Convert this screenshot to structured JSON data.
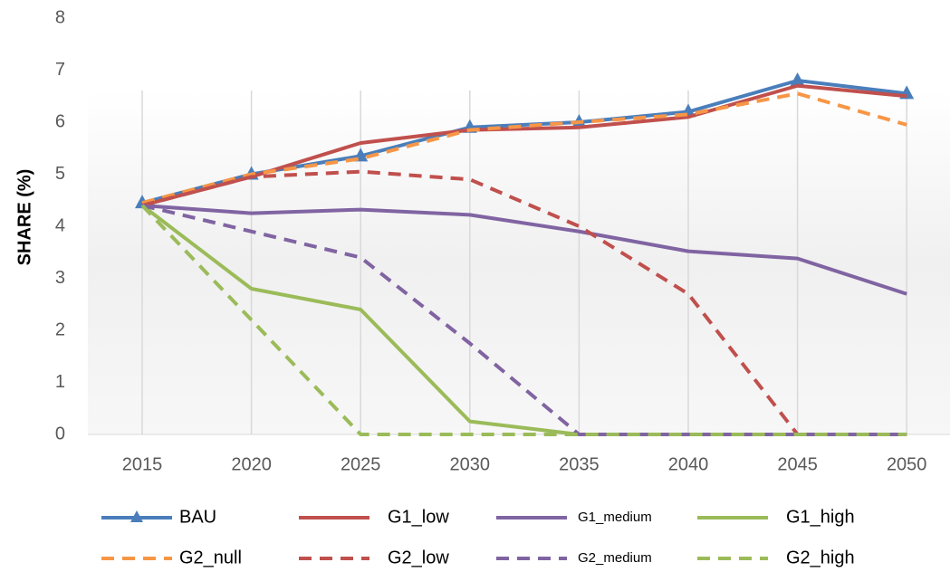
{
  "chart_data": {
    "type": "line",
    "y_label": "SHARE (%)",
    "categories": [
      "2015",
      "2020",
      "2025",
      "2030",
      "2035",
      "2040",
      "2045",
      "2050"
    ],
    "ylim": [
      0,
      8
    ],
    "yticks": [
      0,
      1,
      2,
      3,
      4,
      5,
      6,
      7,
      8
    ],
    "grid": true,
    "legend": "bottom",
    "series": [
      {
        "name": "BAU",
        "color": "#4a7ebb",
        "dash": "solid",
        "marker": "triangle",
        "values": [
          4.45,
          5.0,
          5.35,
          5.9,
          6.0,
          6.2,
          6.8,
          6.55
        ]
      },
      {
        "name": "G1_low",
        "color": "#c0504d",
        "dash": "solid",
        "values": [
          4.4,
          4.95,
          5.6,
          5.85,
          5.9,
          6.1,
          6.7,
          6.5
        ]
      },
      {
        "name": "G1_medium",
        "color": "#8064a2",
        "dash": "solid",
        "values": [
          4.4,
          4.25,
          4.32,
          4.22,
          3.9,
          3.52,
          3.38,
          2.7
        ]
      },
      {
        "name": "G1_high",
        "color": "#9bbb59",
        "dash": "solid",
        "values": [
          4.4,
          2.8,
          2.4,
          0.25,
          0,
          0,
          0,
          0
        ]
      },
      {
        "name": "G2_null",
        "color": "#f79646",
        "dash": "dashed",
        "values": [
          4.45,
          5.0,
          5.3,
          5.85,
          6.0,
          6.15,
          6.55,
          5.95
        ]
      },
      {
        "name": "G2_low",
        "color": "#c0504d",
        "dash": "dashed",
        "values": [
          4.4,
          4.95,
          5.05,
          4.9,
          4.0,
          2.7,
          0,
          0
        ]
      },
      {
        "name": "G2_medium",
        "color": "#8064a2",
        "dash": "dashed",
        "values": [
          4.4,
          3.9,
          3.4,
          1.75,
          0,
          0,
          0,
          0
        ]
      },
      {
        "name": "G2_high",
        "color": "#9bbb59",
        "dash": "dashed",
        "values": [
          4.4,
          2.2,
          0,
          0,
          0,
          0,
          0,
          0
        ]
      }
    ]
  }
}
